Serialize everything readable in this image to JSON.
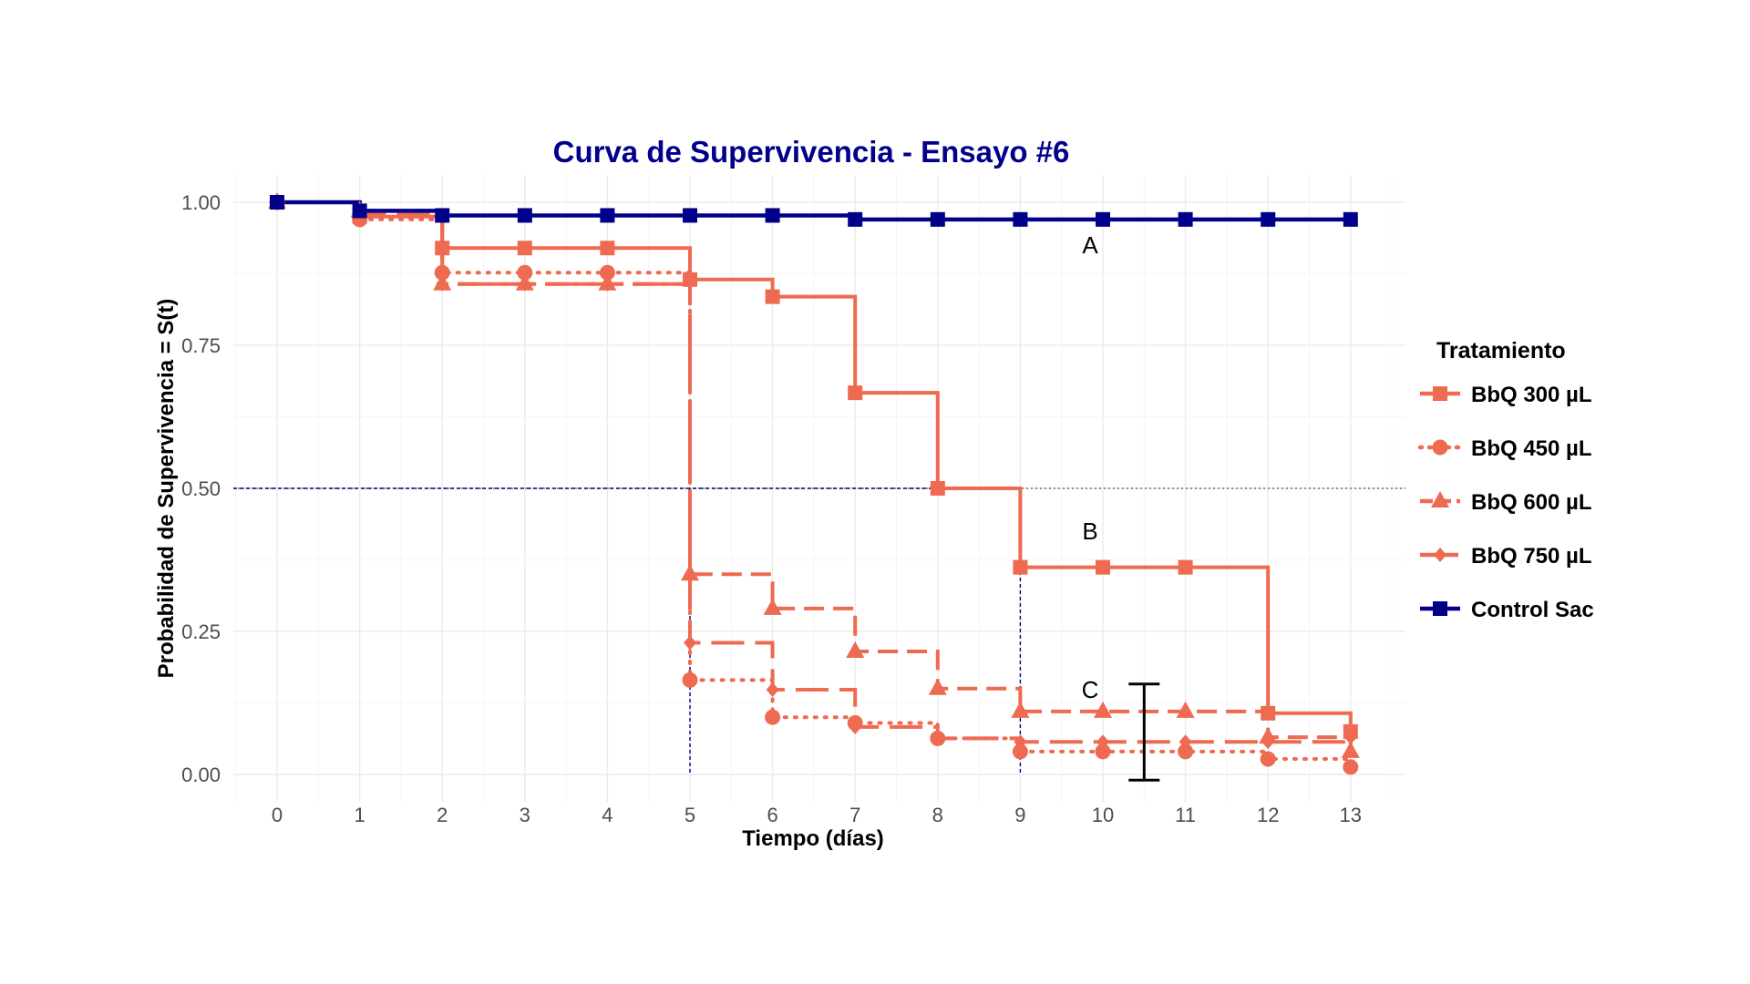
{
  "chart_data": {
    "type": "line",
    "title": "Curva de Supervivencia - Ensayo #6",
    "xlabel": "Tiempo (días)",
    "ylabel": "Probabilidad de Supervivencia = S(t)",
    "xlim": [
      -0.5,
      13.6
    ],
    "ylim": [
      -0.04,
      1.05
    ],
    "x_ticks": [
      0,
      1,
      2,
      3,
      4,
      5,
      6,
      7,
      8,
      9,
      10,
      11,
      12,
      13
    ],
    "x_tick_labels": [
      "0",
      "1",
      "2",
      "3",
      "4",
      "5",
      "6",
      "7",
      "8",
      "9",
      "10",
      "11",
      "12",
      "13"
    ],
    "y_ticks": [
      0,
      0.25,
      0.5,
      0.75,
      1.0
    ],
    "y_tick_labels": [
      "0.00",
      "0.25",
      "0.50",
      "0.75",
      "1.00"
    ],
    "grid": true,
    "legend_title": "Tratamiento",
    "legend_position": "right",
    "x": [
      0,
      1,
      2,
      3,
      4,
      5,
      6,
      7,
      8,
      9,
      10,
      11,
      12,
      13
    ],
    "series": [
      {
        "name": "BbQ 300 µL",
        "color": "#ee6a50",
        "line": "solid",
        "marker": "square",
        "values": [
          1.0,
          0.975,
          0.92,
          0.92,
          0.92,
          0.865,
          0.835,
          0.667,
          0.5,
          0.362,
          0.362,
          0.362,
          0.107,
          0.075
        ]
      },
      {
        "name": "BbQ 450 µL",
        "color": "#ee6a50",
        "line": "dotted",
        "marker": "circle",
        "values": [
          1.0,
          0.97,
          0.877,
          0.877,
          0.877,
          0.165,
          0.1,
          0.09,
          0.063,
          0.04,
          0.04,
          0.04,
          0.027,
          0.013
        ]
      },
      {
        "name": "BbQ 600 µL",
        "color": "#ee6a50",
        "line": "dashed",
        "marker": "triangle",
        "values": [
          1.0,
          0.985,
          0.857,
          0.857,
          0.857,
          0.35,
          0.29,
          0.215,
          0.15,
          0.11,
          0.11,
          0.11,
          0.065,
          0.04
        ]
      },
      {
        "name": "BbQ 750 µL",
        "color": "#ee6a50",
        "line": "longdash",
        "marker": "diamond",
        "values": [
          1.0,
          0.98,
          0.857,
          0.857,
          0.857,
          0.23,
          0.148,
          0.083,
          0.063,
          0.057,
          0.057,
          0.057,
          0.057,
          0.065
        ]
      },
      {
        "name": "Control Sac",
        "color": "#00008b",
        "line": "solid",
        "marker": "square",
        "values": [
          1.0,
          0.985,
          0.977,
          0.977,
          0.977,
          0.977,
          0.977,
          0.97,
          0.97,
          0.97,
          0.97,
          0.97,
          0.97,
          0.97
        ]
      }
    ],
    "reference_lines": {
      "horizontal_y": 0.5,
      "median_vertical_x": [
        5,
        9
      ]
    },
    "annotations": [
      {
        "text": "A",
        "x": 10,
        "y": 0.925
      },
      {
        "text": "B",
        "x": 10,
        "y": 0.425
      },
      {
        "text": "C",
        "x": 10,
        "y": 0.148
      }
    ],
    "bracket": {
      "x": 10.5,
      "y_range": [
        -0.01,
        0.158
      ]
    }
  }
}
